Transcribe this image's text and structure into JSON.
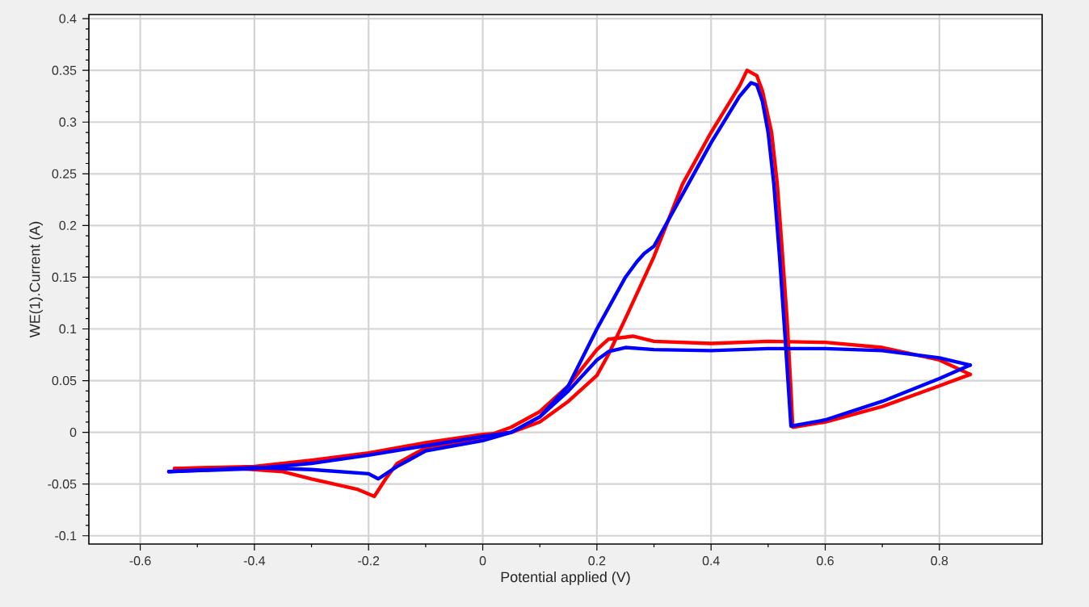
{
  "chart_data": {
    "type": "line",
    "xlabel": "Potential applied (V)",
    "ylabel": "WE(1).Current (A)",
    "xlim": [
      -0.69,
      0.98
    ],
    "ylim": [
      -0.108,
      0.404
    ],
    "xticks": [
      -0.6,
      -0.4,
      -0.2,
      0,
      0.2,
      0.4,
      0.6,
      0.8
    ],
    "yticks": [
      -0.1,
      -0.05,
      0,
      0.05,
      0.1,
      0.15,
      0.2,
      0.25,
      0.3,
      0.35,
      0.4
    ],
    "grid": true,
    "line_style": "solid",
    "series": [
      {
        "color": "#ff0000",
        "x": [
          -0.54,
          -0.4,
          -0.3,
          -0.2,
          -0.1,
          0,
          0.05,
          0.1,
          0.15,
          0.2,
          0.22,
          0.25,
          0.3,
          0.35,
          0.4,
          0.45,
          0.463,
          0.48,
          0.49,
          0.506,
          0.516,
          0.524,
          0.533,
          0.54,
          0.543,
          0.6,
          0.7,
          0.8,
          0.854
        ],
        "values": [
          -0.035,
          -0.033,
          -0.027,
          -0.02,
          -0.01,
          -0.002,
          0,
          0.01,
          0.03,
          0.055,
          0.075,
          0.11,
          0.17,
          0.24,
          0.29,
          0.335,
          0.35,
          0.345,
          0.33,
          0.29,
          0.24,
          0.18,
          0.11,
          0.04,
          0.005,
          0.01,
          0.025,
          0.045,
          0.056
        ]
      },
      {
        "color": "#ff0000",
        "x": [
          0.854,
          0.8,
          0.7,
          0.6,
          0.5,
          0.4,
          0.3,
          0.263,
          0.22,
          0.2,
          0.15,
          0.1,
          0.05,
          0,
          -0.1,
          -0.15,
          -0.17,
          -0.19,
          -0.22,
          -0.3,
          -0.35,
          -0.45,
          -0.54
        ],
        "values": [
          0.056,
          0.07,
          0.082,
          0.087,
          0.088,
          0.086,
          0.088,
          0.093,
          0.09,
          0.08,
          0.045,
          0.02,
          0.005,
          -0.005,
          -0.015,
          -0.03,
          -0.045,
          -0.062,
          -0.055,
          -0.045,
          -0.038,
          -0.034,
          -0.035
        ]
      },
      {
        "color": "#0000ff",
        "x": [
          -0.55,
          -0.4,
          -0.3,
          -0.2,
          -0.1,
          0,
          0.05,
          0.1,
          0.15,
          0.2,
          0.25,
          0.27,
          0.283,
          0.3,
          0.35,
          0.4,
          0.45,
          0.47,
          0.48,
          0.49,
          0.5,
          0.51,
          0.52,
          0.53,
          0.54,
          0.6,
          0.7,
          0.8,
          0.854
        ],
        "values": [
          -0.038,
          -0.035,
          -0.03,
          -0.022,
          -0.013,
          -0.004,
          0,
          0.015,
          0.045,
          0.1,
          0.15,
          0.165,
          0.173,
          0.18,
          0.23,
          0.28,
          0.325,
          0.338,
          0.336,
          0.32,
          0.29,
          0.24,
          0.17,
          0.09,
          0.006,
          0.012,
          0.03,
          0.052,
          0.065
        ]
      },
      {
        "color": "#0000ff",
        "x": [
          0.854,
          0.8,
          0.7,
          0.6,
          0.5,
          0.4,
          0.3,
          0.25,
          0.22,
          0.2,
          0.15,
          0.1,
          0.05,
          0,
          -0.1,
          -0.15,
          -0.183,
          -0.2,
          -0.3,
          -0.4,
          -0.55
        ],
        "values": [
          0.065,
          0.072,
          0.079,
          0.081,
          0.081,
          0.079,
          0.08,
          0.082,
          0.078,
          0.07,
          0.04,
          0.015,
          0,
          -0.008,
          -0.018,
          -0.033,
          -0.045,
          -0.04,
          -0.036,
          -0.034,
          -0.038
        ]
      }
    ]
  }
}
